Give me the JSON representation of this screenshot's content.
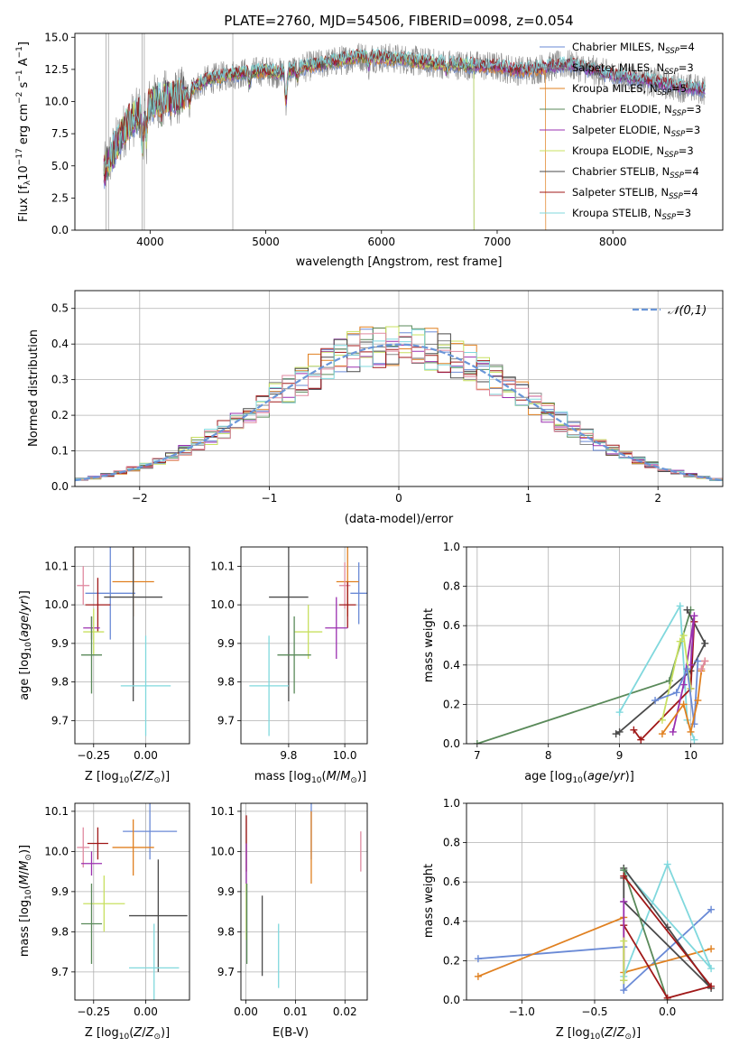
{
  "colors": {
    "chabrier_miles": "#6a8ad6",
    "salpeter_miles": "#888888",
    "kroupa_miles": "#e08020",
    "chabrier_elodie": "#5a8a5a",
    "salpeter_elodie": "#9b30b0",
    "kroupa_elodie": "#c8e060",
    "chabrier_stelib": "#4a4a4a",
    "salpeter_stelib": "#a01818",
    "kroupa_stelib": "#80d8dd",
    "pink": "#e08aa0",
    "normal_curve": "#6a96d8"
  },
  "chart_data": [
    {
      "id": "spectrum",
      "type": "line",
      "title": "PLATE=2760, MJD=54506, FIBERID=0098, z=0.054",
      "xlabel": "wavelength [Angstrom, rest frame]",
      "ylabel": "Flux [f_λ 10^-17 erg cm^-2 s^-1 A^-1]",
      "xlim": [
        3350,
        8950
      ],
      "ylim": [
        0,
        15.3
      ],
      "xticks": [
        4000,
        5000,
        6000,
        7000,
        8000
      ],
      "yticks": [
        0.0,
        2.5,
        5.0,
        7.5,
        10.0,
        12.5,
        15.0
      ],
      "legend_position": "right",
      "legend": [
        {
          "label": "Chabrier MILES, N",
          "sub": "SSP",
          "suffix": "=4",
          "color": "chabrier_miles"
        },
        {
          "label": "Salpeter MILES, N",
          "sub": "SSP",
          "suffix": "=3",
          "color": "salpeter_miles"
        },
        {
          "label": "Kroupa MILES, N",
          "sub": "SSP",
          "suffix": "=5",
          "color": "kroupa_miles"
        },
        {
          "label": "Chabrier ELODIE, N",
          "sub": "SSP",
          "suffix": "=3",
          "color": "chabrier_elodie"
        },
        {
          "label": "Salpeter ELODIE, N",
          "sub": "SSP",
          "suffix": "=3",
          "color": "salpeter_elodie"
        },
        {
          "label": "Kroupa ELODIE, N",
          "sub": "SSP",
          "suffix": "=3",
          "color": "kroupa_elodie"
        },
        {
          "label": "Chabrier STELIB, N",
          "sub": "SSP",
          "suffix": "=4",
          "color": "chabrier_stelib"
        },
        {
          "label": "Salpeter STELIB, N",
          "sub": "SSP",
          "suffix": "=4",
          "color": "salpeter_stelib"
        },
        {
          "label": "Kroupa STELIB, N",
          "sub": "SSP",
          "suffix": "=3",
          "color": "kroupa_stelib"
        }
      ],
      "continuum": [
        [
          3600,
          4.5
        ],
        [
          3700,
          6.5
        ],
        [
          3800,
          8.2
        ],
        [
          3900,
          9.0
        ],
        [
          4000,
          9.8
        ],
        [
          4100,
          10.3
        ],
        [
          4200,
          10.2
        ],
        [
          4300,
          10.6
        ],
        [
          4400,
          11.2
        ],
        [
          4500,
          11.7
        ],
        [
          4700,
          12.1
        ],
        [
          4900,
          12.3
        ],
        [
          5000,
          12.4
        ],
        [
          5100,
          12.2
        ],
        [
          5200,
          12.4
        ],
        [
          5400,
          12.8
        ],
        [
          5600,
          13.1
        ],
        [
          5800,
          13.5
        ],
        [
          6000,
          13.4
        ],
        [
          6200,
          13.3
        ],
        [
          6400,
          13.0
        ],
        [
          6600,
          12.9
        ],
        [
          6800,
          12.8
        ],
        [
          7000,
          12.7
        ],
        [
          7200,
          12.4
        ],
        [
          7400,
          12.6
        ],
        [
          7600,
          12.9
        ],
        [
          7800,
          12.5
        ],
        [
          8000,
          12.0
        ],
        [
          8200,
          11.8
        ],
        [
          8400,
          11.4
        ],
        [
          8600,
          11.1
        ],
        [
          8800,
          10.9
        ]
      ]
    },
    {
      "id": "residuals",
      "type": "histogram",
      "xlabel": "(data-model)/error",
      "ylabel": "Normed distribution",
      "xlim": [
        -2.5,
        2.5
      ],
      "ylim": [
        0,
        0.55
      ],
      "xticks": [
        -2,
        -1,
        0,
        1,
        2
      ],
      "yticks": [
        0.0,
        0.1,
        0.2,
        0.3,
        0.4,
        0.5
      ],
      "grid": true,
      "bin_width": 0.1,
      "legend": "𝒩(0,1)",
      "legend_position": "top-right"
    },
    {
      "id": "z_vs_age",
      "type": "scatter-errorbar",
      "xlabel": "Z [log10(Z/Z⊙)]",
      "ylabel": "age [log10(age/yr)]",
      "xlim": [
        -0.34,
        0.21
      ],
      "ylim": [
        9.64,
        10.15
      ],
      "xticks": [
        -0.25,
        0.0
      ],
      "yticks": [
        9.7,
        9.8,
        9.9,
        10.0,
        10.1
      ],
      "grid": true,
      "points": [
        {
          "x": -0.3,
          "xerr": 0.03,
          "y": 10.05,
          "yerr": 0.05,
          "color": "pink"
        },
        {
          "x": -0.06,
          "xerr": 0.1,
          "y": 10.06,
          "yerr": 0.09,
          "color": "kroupa_miles"
        },
        {
          "x": -0.17,
          "xerr": 0.12,
          "y": 10.03,
          "yerr": 0.12,
          "color": "chabrier_miles"
        },
        {
          "x": -0.06,
          "xerr": 0.14,
          "y": 10.02,
          "yerr": 0.27,
          "color": "chabrier_stelib"
        },
        {
          "x": -0.23,
          "xerr": 0.06,
          "y": 10.0,
          "yerr": 0.07,
          "color": "salpeter_stelib"
        },
        {
          "x": -0.26,
          "xerr": 0.04,
          "y": 9.94,
          "yerr": 0.03,
          "color": "salpeter_elodie"
        },
        {
          "x": -0.25,
          "xerr": 0.05,
          "y": 9.93,
          "yerr": 0.06,
          "color": "kroupa_elodie"
        },
        {
          "x": -0.26,
          "xerr": 0.05,
          "y": 9.87,
          "yerr": 0.1,
          "color": "chabrier_elodie"
        },
        {
          "x": 0.0,
          "xerr": 0.12,
          "y": 9.79,
          "yerr": 0.13,
          "color": "kroupa_stelib"
        }
      ]
    },
    {
      "id": "mass_vs_age",
      "type": "scatter-errorbar",
      "xlabel": "mass [log10(M/M⊙)]",
      "ylabel": "",
      "xlim": [
        9.63,
        10.08
      ],
      "ylim": [
        9.64,
        10.15
      ],
      "xticks": [
        9.8,
        10.0
      ],
      "yticks": [
        9.7,
        9.8,
        9.9,
        10.0,
        10.1
      ],
      "grid": true,
      "points": [
        {
          "x": 10.05,
          "xerr": 0.03,
          "y": 10.03,
          "yerr": 0.08,
          "color": "chabrier_miles"
        },
        {
          "x": 10.01,
          "xerr": 0.04,
          "y": 10.06,
          "yerr": 0.09,
          "color": "kroupa_miles"
        },
        {
          "x": 10.0,
          "xerr": 0.02,
          "y": 10.05,
          "yerr": 0.06,
          "color": "pink"
        },
        {
          "x": 9.8,
          "xerr": 0.07,
          "y": 10.02,
          "yerr": 0.27,
          "color": "chabrier_stelib"
        },
        {
          "x": 10.01,
          "xerr": 0.03,
          "y": 10.0,
          "yerr": 0.06,
          "color": "salpeter_stelib"
        },
        {
          "x": 9.97,
          "xerr": 0.04,
          "y": 9.94,
          "yerr": 0.08,
          "color": "salpeter_elodie"
        },
        {
          "x": 9.87,
          "xerr": 0.05,
          "y": 9.93,
          "yerr": 0.07,
          "color": "kroupa_elodie"
        },
        {
          "x": 9.82,
          "xerr": 0.06,
          "y": 9.87,
          "yerr": 0.1,
          "color": "chabrier_elodie"
        },
        {
          "x": 9.73,
          "xerr": 0.07,
          "y": 9.79,
          "yerr": 0.13,
          "color": "kroupa_stelib"
        }
      ]
    },
    {
      "id": "age_vs_weight",
      "type": "line",
      "xlabel": "age [log10(age/yr)]",
      "ylabel": "mass weight",
      "xlim": [
        6.85,
        10.45
      ],
      "ylim": [
        0,
        1.0
      ],
      "xticks": [
        7,
        8,
        9,
        10
      ],
      "yticks": [
        0.0,
        0.2,
        0.4,
        0.6,
        0.8,
        1.0
      ],
      "grid": true,
      "series": [
        {
          "color": "chabrier_elodie",
          "x": [
            7.0,
            9.7,
            10.0
          ],
          "y": [
            0.0,
            0.32,
            0.68
          ]
        },
        {
          "color": "kroupa_stelib",
          "x": [
            9.0,
            9.85,
            9.95,
            10.05
          ],
          "y": [
            0.16,
            0.7,
            0.12,
            0.02
          ]
        },
        {
          "color": "chabrier_stelib",
          "x": [
            8.95,
            9.0,
            10.0,
            10.2,
            9.95
          ],
          "y": [
            0.05,
            0.06,
            0.37,
            0.51,
            0.68
          ]
        },
        {
          "color": "salpeter_stelib",
          "x": [
            9.2,
            9.3,
            10.0,
            10.05
          ],
          "y": [
            0.07,
            0.02,
            0.28,
            0.62
          ]
        },
        {
          "color": "salpeter_elodie",
          "x": [
            9.75,
            9.9,
            10.05,
            10.0
          ],
          "y": [
            0.06,
            0.3,
            0.65,
            0.4
          ]
        },
        {
          "color": "kroupa_elodie",
          "x": [
            9.6,
            9.85,
            9.9,
            10.0
          ],
          "y": [
            0.12,
            0.52,
            0.55,
            0.28
          ]
        },
        {
          "color": "chabrier_miles",
          "x": [
            9.5,
            9.8,
            9.95,
            10.05,
            10.1
          ],
          "y": [
            0.22,
            0.26,
            0.38,
            0.1,
            0.42
          ]
        },
        {
          "color": "kroupa_miles",
          "x": [
            9.6,
            9.9,
            10.0,
            10.1,
            10.15,
            10.2
          ],
          "y": [
            0.05,
            0.2,
            0.06,
            0.22,
            0.37,
            0.42
          ]
        },
        {
          "color": "pink",
          "x": [
            10.15,
            10.2
          ],
          "y": [
            0.38,
            0.42
          ]
        }
      ]
    },
    {
      "id": "z_vs_mass",
      "type": "scatter-errorbar",
      "xlabel": "Z [log10(Z/Z⊙)]",
      "ylabel": "mass [log10(M/M⊙)]",
      "xlim": [
        -0.34,
        0.21
      ],
      "ylim": [
        9.63,
        10.12
      ],
      "xticks": [
        -0.25,
        0.0
      ],
      "yticks": [
        9.7,
        9.8,
        9.9,
        10.0,
        10.1
      ],
      "grid": true,
      "points": [
        {
          "x": 0.02,
          "xerr": 0.13,
          "y": 10.05,
          "yerr": 0.07,
          "color": "chabrier_miles"
        },
        {
          "x": -0.06,
          "xerr": 0.1,
          "y": 10.01,
          "yerr": 0.07,
          "color": "kroupa_miles"
        },
        {
          "x": -0.3,
          "xerr": 0.03,
          "y": 10.01,
          "yerr": 0.05,
          "color": "pink"
        },
        {
          "x": -0.23,
          "xerr": 0.05,
          "y": 10.02,
          "yerr": 0.04,
          "color": "salpeter_stelib"
        },
        {
          "x": -0.26,
          "xerr": 0.05,
          "y": 9.97,
          "yerr": 0.03,
          "color": "salpeter_elodie"
        },
        {
          "x": -0.2,
          "xerr": 0.1,
          "y": 9.87,
          "yerr": 0.07,
          "color": "kroupa_elodie"
        },
        {
          "x": 0.06,
          "xerr": 0.14,
          "y": 9.84,
          "yerr": 0.14,
          "color": "chabrier_stelib"
        },
        {
          "x": -0.26,
          "xerr": 0.05,
          "y": 9.82,
          "yerr": 0.1,
          "color": "chabrier_elodie"
        },
        {
          "x": 0.04,
          "xerr": 0.12,
          "y": 9.71,
          "yerr": 0.11,
          "color": "kroupa_stelib"
        }
      ]
    },
    {
      "id": "ebv_vs_mass",
      "type": "scatter-errorbar",
      "xlabel": "E(B-V)",
      "ylabel": "",
      "xlim": [
        -0.001,
        0.0245
      ],
      "ylim": [
        9.63,
        10.12
      ],
      "xticks": [
        0.0,
        0.01,
        0.02
      ],
      "yticks": [
        9.7,
        9.8,
        9.9,
        10.0,
        10.1
      ],
      "grid": true,
      "points": [
        {
          "x": 0.0132,
          "y": 10.05,
          "yerr": 0.07,
          "color": "chabrier_miles"
        },
        {
          "x": 0.0132,
          "y": 10.01,
          "yerr": 0.09,
          "color": "kroupa_miles"
        },
        {
          "x": 0.0232,
          "y": 10.0,
          "yerr": 0.05,
          "color": "pink"
        },
        {
          "x": 0.0001,
          "y": 10.02,
          "yerr": 0.07,
          "color": "salpeter_stelib"
        },
        {
          "x": 0.0001,
          "y": 9.97,
          "yerr": 0.05,
          "color": "salpeter_elodie"
        },
        {
          "x": 0.0001,
          "y": 9.85,
          "yerr": 0.07,
          "color": "kroupa_elodie"
        },
        {
          "x": 0.0033,
          "y": 9.79,
          "yerr": 0.1,
          "color": "chabrier_stelib"
        },
        {
          "x": 0.0002,
          "y": 9.82,
          "yerr": 0.1,
          "color": "chabrier_elodie"
        },
        {
          "x": 0.0066,
          "y": 9.74,
          "yerr": 0.08,
          "color": "kroupa_stelib"
        }
      ]
    },
    {
      "id": "z_vs_weight",
      "type": "line",
      "xlabel": "Z [log10(Z/Z⊙)]",
      "ylabel": "mass weight",
      "xlim": [
        -1.38,
        0.38
      ],
      "ylim": [
        0,
        1.0
      ],
      "xticks": [
        -1.0,
        -0.5,
        0.0
      ],
      "yticks": [
        0.0,
        0.2,
        0.4,
        0.6,
        0.8,
        1.0
      ],
      "grid": true,
      "series": [
        {
          "color": "chabrier_miles",
          "x": [
            -1.3,
            -0.3,
            -0.3,
            0.3
          ],
          "y": [
            0.21,
            0.27,
            0.05,
            0.46
          ]
        },
        {
          "color": "kroupa_miles",
          "x": [
            -1.3,
            -0.3,
            -0.3,
            0.3
          ],
          "y": [
            0.12,
            0.42,
            0.14,
            0.26
          ]
        },
        {
          "color": "kroupa_stelib",
          "x": [
            -0.3,
            0.0,
            0.3,
            -0.3
          ],
          "y": [
            0.12,
            0.69,
            0.16,
            0.66
          ]
        },
        {
          "color": "chabrier_stelib",
          "x": [
            -0.3,
            0.0,
            0.3,
            -0.3,
            -0.3
          ],
          "y": [
            0.67,
            0.37,
            0.06,
            0.5,
            0.62
          ]
        },
        {
          "color": "chabrier_elodie",
          "x": [
            -0.3,
            0.0
          ],
          "y": [
            0.66,
            0.0
          ]
        },
        {
          "color": "salpeter_stelib",
          "x": [
            -0.3,
            0.0,
            0.3,
            -0.3
          ],
          "y": [
            0.38,
            0.01,
            0.07,
            0.63
          ]
        },
        {
          "color": "salpeter_elodie",
          "x": [
            -0.3,
            -0.3
          ],
          "y": [
            0.1,
            0.5
          ]
        },
        {
          "color": "kroupa_elodie",
          "x": [
            -0.3,
            -0.3
          ],
          "y": [
            0.1,
            0.3
          ]
        }
      ]
    }
  ]
}
